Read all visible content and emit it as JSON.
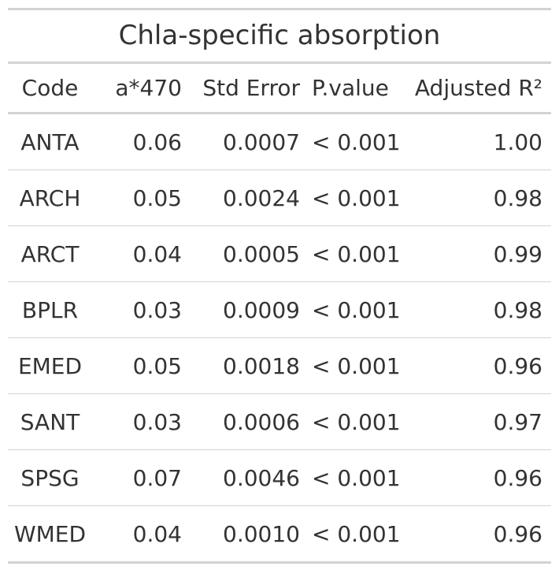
{
  "table": {
    "title": "Chla-specific absorption",
    "columns": [
      "Code",
      "a*470",
      "Std Error",
      "P.value",
      "Adjusted R²"
    ],
    "rows": [
      [
        "ANTA",
        "0.06",
        "0.0007",
        "< 0.001",
        "1.00"
      ],
      [
        "ARCH",
        "0.05",
        "0.0024",
        "< 0.001",
        "0.98"
      ],
      [
        "ARCT",
        "0.04",
        "0.0005",
        "< 0.001",
        "0.99"
      ],
      [
        "BPLR",
        "0.03",
        "0.0009",
        "< 0.001",
        "0.98"
      ],
      [
        "EMED",
        "0.05",
        "0.0018",
        "< 0.001",
        "0.96"
      ],
      [
        "SANT",
        "0.03",
        "0.0006",
        "< 0.001",
        "0.97"
      ],
      [
        "SPSG",
        "0.07",
        "0.0046",
        "< 0.001",
        "0.96"
      ],
      [
        "WMED",
        "0.04",
        "0.0010",
        "< 0.001",
        "0.96"
      ]
    ]
  },
  "colors": {
    "text": "#333333",
    "rule": "#d3d3d3",
    "background": "#ffffff"
  }
}
